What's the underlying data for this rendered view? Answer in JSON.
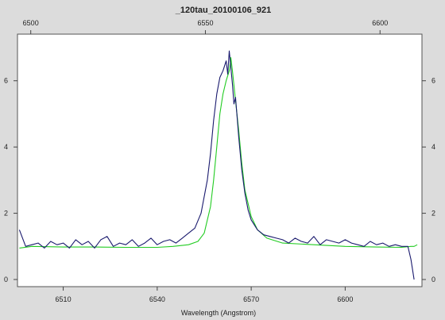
{
  "chart_data": {
    "type": "line",
    "title": "_120tau_20100106_921",
    "xlabel": "Wavelength (Angstrom)",
    "ylabel": "",
    "grid": false,
    "legend": "none",
    "x_bottom_ticks": [
      6510,
      6540,
      6570,
      6600
    ],
    "x_top_ticks": [
      6500,
      6550,
      6600
    ],
    "y_ticks": [
      0,
      2,
      4,
      6
    ],
    "xlim_bottom": [
      6495.4,
      6624.5
    ],
    "xlim_top": [
      6496.2,
      6612.0
    ],
    "ylim": [
      0,
      7
    ],
    "colors": {
      "observed": "#1a1a6e",
      "model": "#22cc22",
      "plot_bg": "#ffffff",
      "page_bg": "#dcdcdc"
    },
    "series": [
      {
        "key": "observed",
        "x": [
          6496.0,
          6498,
          6500,
          6502,
          6504,
          6506,
          6508,
          6510,
          6512,
          6514,
          6516,
          6518,
          6520,
          6522,
          6524,
          6526,
          6528,
          6530,
          6532,
          6534,
          6536,
          6538,
          6540,
          6542,
          6544,
          6546,
          6548,
          6550,
          6552,
          6554,
          6556,
          6557,
          6558,
          6559,
          6560,
          6561,
          6562,
          6562.5,
          6563,
          6563.5,
          6564,
          6564.5,
          6565,
          6566,
          6567,
          6568,
          6569,
          6570,
          6572,
          6574,
          6576,
          6578,
          6580,
          6582,
          6584,
          6586,
          6588,
          6590,
          6592,
          6594,
          6596,
          6598,
          6600,
          6602,
          6604,
          6606,
          6608,
          6610,
          6612,
          6614,
          6616,
          6618,
          6620,
          6621,
          6622
        ],
        "y": [
          1.5,
          1.0,
          1.05,
          1.1,
          0.95,
          1.15,
          1.05,
          1.1,
          0.95,
          1.2,
          1.05,
          1.15,
          0.95,
          1.2,
          1.3,
          1.0,
          1.1,
          1.05,
          1.2,
          1.0,
          1.1,
          1.25,
          1.05,
          1.15,
          1.2,
          1.1,
          1.25,
          1.4,
          1.55,
          2.0,
          3.0,
          3.8,
          4.8,
          5.6,
          6.1,
          6.3,
          6.6,
          6.2,
          6.9,
          6.4,
          5.9,
          5.3,
          5.5,
          4.3,
          3.3,
          2.6,
          2.1,
          1.8,
          1.5,
          1.35,
          1.3,
          1.25,
          1.2,
          1.1,
          1.25,
          1.15,
          1.1,
          1.3,
          1.05,
          1.2,
          1.15,
          1.1,
          1.2,
          1.1,
          1.05,
          1.0,
          1.15,
          1.05,
          1.1,
          1.0,
          1.05,
          1.0,
          1.0,
          0.6,
          0.0
        ]
      },
      {
        "key": "model",
        "x": [
          6496.0,
          6500,
          6510,
          6520,
          6530,
          6540,
          6545,
          6550,
          6553,
          6555,
          6557,
          6558,
          6559,
          6560,
          6561,
          6562,
          6563,
          6563.5,
          6564,
          6565,
          6566,
          6567,
          6568,
          6570,
          6572,
          6575,
          6580,
          6590,
          6600,
          6610,
          6618,
          6621,
          6622,
          6623
        ],
        "y": [
          0.95,
          1.0,
          0.98,
          0.98,
          0.97,
          0.97,
          1.0,
          1.05,
          1.15,
          1.4,
          2.2,
          3.0,
          4.0,
          5.0,
          5.6,
          6.0,
          6.3,
          6.7,
          6.3,
          5.4,
          4.5,
          3.5,
          2.7,
          1.9,
          1.5,
          1.25,
          1.1,
          1.05,
          1.0,
          0.98,
          0.97,
          1.0,
          1.0,
          1.05
        ]
      }
    ]
  }
}
